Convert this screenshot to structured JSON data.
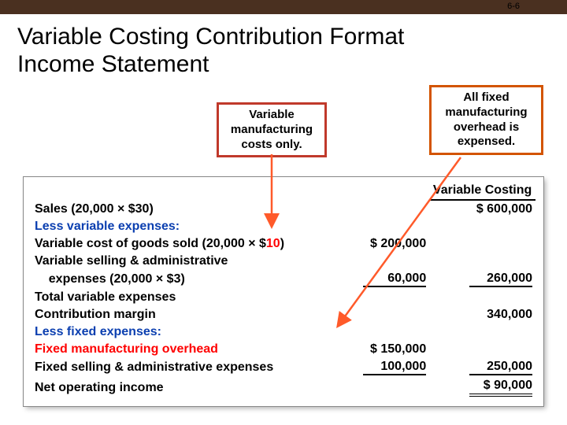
{
  "page_number": "6-6",
  "title_line1": "Variable Costing Contribution Format",
  "title_line2": "Income Statement",
  "callout_left": {
    "text": "Variable manufacturing costs only.",
    "border_color": "#c0392b"
  },
  "callout_right": {
    "text": "All fixed manufacturing overhead is expensed.",
    "border_color": "#d35400"
  },
  "table": {
    "header_right": "Variable Costing",
    "rows": [
      {
        "label": "Sales (20,000 × $30)",
        "c1": "",
        "c2": "$ 600,000",
        "style": "plain"
      },
      {
        "label": "Less variable expenses:",
        "c1": "",
        "c2": "",
        "style": "blue"
      },
      {
        "label_pre": "Variable cost of goods sold (20,000 × $",
        "label_red": "10",
        "label_post": ")",
        "c1": "$ 200,000",
        "c2": "",
        "style": "mixed"
      },
      {
        "label": "Variable selling & administrative",
        "c1": "",
        "c2": "",
        "style": "plain"
      },
      {
        "label": "    expenses (20,000 × $3)",
        "c1": "60,000",
        "c1_ul": "single",
        "c2": "260,000",
        "c2_ul": "single",
        "style": "plain"
      },
      {
        "label": "Total variable expenses",
        "c1": "",
        "c2": "",
        "style": "plain"
      },
      {
        "label": "Contribution margin",
        "c1": "",
        "c2": "340,000",
        "style": "plain"
      },
      {
        "label": "Less fixed expenses:",
        "c1": "",
        "c2": "",
        "style": "blue"
      },
      {
        "label": "Fixed manufacturing overhead",
        "c1": "$ 150,000",
        "c2": "",
        "style": "red"
      },
      {
        "label": "Fixed selling & administrative expenses",
        "c1": "100,000",
        "c1_ul": "single",
        "c2": "250,000",
        "c2_ul": "single",
        "style": "plain"
      },
      {
        "label": "Net operating income",
        "c1": "",
        "c2": "$  90,000",
        "c2_ul": "double",
        "style": "plain"
      }
    ]
  },
  "colors": {
    "top_bar": "#4a3020",
    "blue_text": "#0b3fb0",
    "red_text": "#ff0000",
    "arrow": "#ff5a2a"
  }
}
